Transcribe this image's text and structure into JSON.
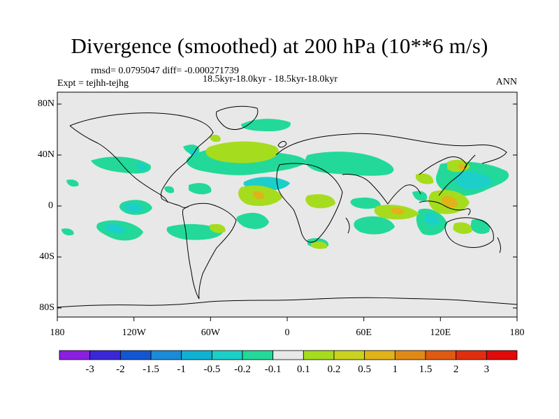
{
  "title": "Divergence (smoothed) at 200 hPa (10**6 m/s)",
  "stats": "rmsd= 0.0795047 diff= -0.000271739",
  "subtitle": "18.5kyr-18.0kyr - 18.5kyr-18.0kyr",
  "expt": "Expt = tejhh-tejhg",
  "season": "ANN",
  "lat_labels": [
    "80N",
    "40N",
    "0",
    "40S",
    "80S"
  ],
  "lon_labels": [
    "180",
    "120W",
    "60W",
    "0",
    "60E",
    "120E",
    "180"
  ],
  "colorbar": {
    "labels": [
      "-3",
      "-2",
      "-1.5",
      "-1",
      "-0.5",
      "-0.2",
      "-0.1",
      "0.1",
      "0.2",
      "0.5",
      "1",
      "1.5",
      "2",
      "3"
    ],
    "colors": [
      "#8a1fe0",
      "#3a28d8",
      "#1456d2",
      "#1a8bd8",
      "#0fb2d4",
      "#1ccfc8",
      "#22d99a",
      "#e8e8e8",
      "#a6dc1e",
      "#c9d21e",
      "#e0b319",
      "#e08a16",
      "#e05a12",
      "#e02e10",
      "#e00a0a"
    ]
  },
  "colors": {
    "ocean": "#e8e8e8",
    "coast": "#000000",
    "neg_weak": "#22d99a",
    "neg_mid": "#1ccfc8",
    "pos_weak": "#a6dc1e",
    "pos_mid": "#c9d21e",
    "pos_strong": "#e0b319"
  }
}
